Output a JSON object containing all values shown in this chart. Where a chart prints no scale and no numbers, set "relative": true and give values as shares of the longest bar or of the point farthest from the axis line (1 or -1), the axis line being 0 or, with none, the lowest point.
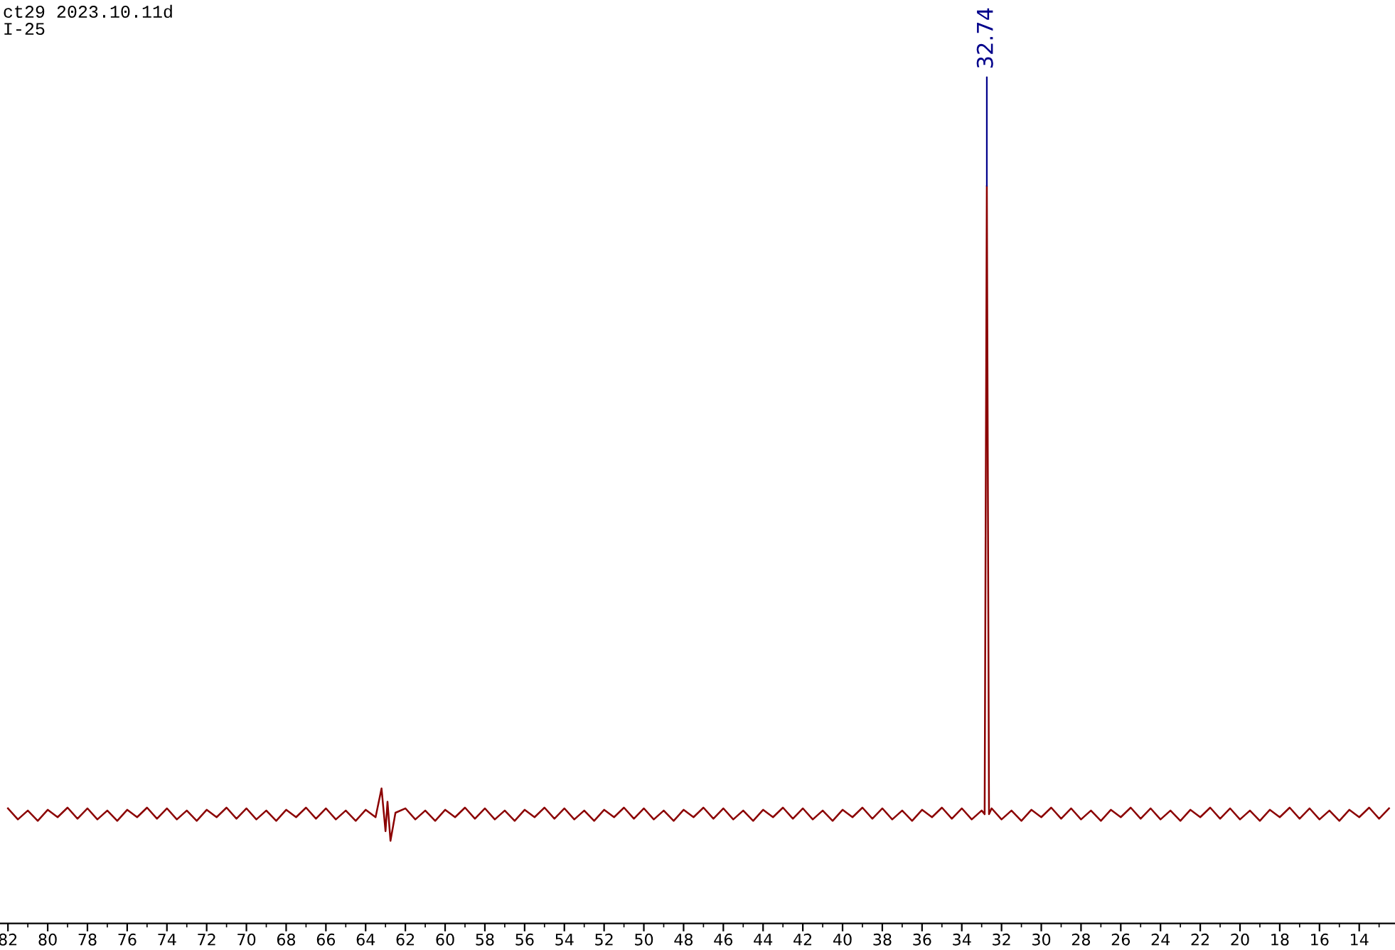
{
  "chart_data": {
    "type": "line",
    "relative": true,
    "annotations": [
      "ct29 2023.10.11d",
      "I-25",
      {
        "text": "32.74",
        "x": 32.74,
        "y": 1.0
      }
    ],
    "xlim": [
      82.4,
      12.2
    ],
    "xticks": [
      82,
      {
        "value": 81,
        "label": null
      },
      80,
      {
        "value": 79,
        "label": null
      },
      78,
      {
        "value": 77,
        "label": null
      },
      76,
      {
        "value": 75,
        "label": null
      },
      74,
      {
        "value": 73,
        "label": null
      },
      72,
      {
        "value": 71,
        "label": null
      },
      70,
      {
        "value": 69,
        "label": null
      },
      68,
      {
        "value": 67,
        "label": null
      },
      66,
      {
        "value": 65,
        "label": null
      },
      64,
      {
        "value": 63,
        "label": null
      },
      62,
      {
        "value": 61,
        "label": null
      },
      60,
      {
        "value": 59,
        "label": null
      },
      58,
      {
        "value": 57,
        "label": null
      },
      56,
      {
        "value": 55,
        "label": null
      },
      54,
      {
        "value": 53,
        "label": null
      },
      52,
      {
        "value": 51,
        "label": null
      },
      50,
      {
        "value": 49,
        "label": null
      },
      48,
      {
        "value": 47,
        "label": null
      },
      46,
      {
        "value": 45,
        "label": null
      },
      44,
      {
        "value": 43,
        "label": null
      },
      42,
      {
        "value": 41,
        "label": null
      },
      40,
      {
        "value": 39,
        "label": null
      },
      38,
      {
        "value": 37,
        "label": null
      },
      36,
      {
        "value": 35,
        "label": null
      },
      34,
      {
        "value": 33,
        "label": null
      },
      32,
      {
        "value": 31,
        "label": null
      },
      30,
      {
        "value": 29,
        "label": null
      },
      28,
      {
        "value": 27,
        "label": null
      },
      26,
      {
        "value": 25,
        "label": null
      },
      24,
      {
        "value": 23,
        "label": null
      },
      22,
      {
        "value": 21,
        "label": null
      },
      20,
      {
        "value": 19,
        "label": null
      },
      18,
      {
        "value": 17,
        "label": null
      },
      16,
      {
        "value": 15,
        "label": null
      },
      14,
      {
        "value": 13,
        "label": null
      }
    ],
    "grid": false,
    "legend": false,
    "series": [
      {
        "color": "#8b0000",
        "x": [
          82,
          81.5,
          81,
          80.5,
          80,
          79.5,
          79,
          78.5,
          78,
          77.5,
          77,
          76.5,
          76,
          75.5,
          75,
          74.5,
          74,
          73.5,
          73,
          72.5,
          72,
          71.5,
          71,
          70.5,
          70,
          69.5,
          69,
          68.5,
          68,
          67.5,
          67,
          66.5,
          66,
          65.5,
          65,
          64.5,
          64,
          63.5,
          63.2,
          63.0,
          62.9,
          62.75,
          62.5,
          62,
          61.5,
          61,
          60.5,
          60,
          59.5,
          59,
          58.5,
          58,
          57.5,
          57,
          56.5,
          56,
          55.5,
          55,
          54.5,
          54,
          53.5,
          53,
          52.5,
          52,
          51.5,
          51,
          50.5,
          50,
          49.5,
          49,
          48.5,
          48,
          47.5,
          47,
          46.5,
          46,
          45.5,
          45,
          44.5,
          44,
          43.5,
          43,
          42.5,
          42,
          41.5,
          41,
          40.5,
          40,
          39.5,
          39,
          38.5,
          38,
          37.5,
          37,
          36.5,
          36,
          35.5,
          35,
          34.5,
          34,
          33.5,
          33,
          32.85,
          32.74,
          32.63,
          32.5,
          32,
          31.5,
          31,
          30.5,
          30,
          29.5,
          29,
          28.5,
          28,
          27.5,
          27,
          26.5,
          26,
          25.5,
          25,
          24.5,
          24,
          23.5,
          23,
          22.5,
          22,
          21.5,
          21,
          20.5,
          20,
          19.5,
          19,
          18.5,
          18,
          17.5,
          17,
          16.5,
          16,
          15.5,
          15,
          14.5,
          14,
          13.5,
          13,
          12.5
        ],
        "values": [
          0.156,
          0.141,
          0.153,
          0.139,
          0.154,
          0.144,
          0.157,
          0.142,
          0.156,
          0.141,
          0.153,
          0.139,
          0.154,
          0.144,
          0.157,
          0.142,
          0.156,
          0.141,
          0.153,
          0.139,
          0.154,
          0.144,
          0.157,
          0.142,
          0.156,
          0.141,
          0.153,
          0.139,
          0.154,
          0.144,
          0.157,
          0.142,
          0.156,
          0.141,
          0.153,
          0.139,
          0.154,
          0.144,
          0.183,
          0.125,
          0.165,
          0.112,
          0.15,
          0.156,
          0.141,
          0.153,
          0.139,
          0.154,
          0.144,
          0.157,
          0.142,
          0.156,
          0.141,
          0.153,
          0.139,
          0.154,
          0.144,
          0.157,
          0.142,
          0.156,
          0.141,
          0.153,
          0.139,
          0.154,
          0.144,
          0.157,
          0.142,
          0.156,
          0.141,
          0.153,
          0.139,
          0.154,
          0.144,
          0.157,
          0.142,
          0.156,
          0.141,
          0.153,
          0.139,
          0.154,
          0.144,
          0.157,
          0.142,
          0.156,
          0.141,
          0.153,
          0.139,
          0.154,
          0.144,
          0.157,
          0.142,
          0.156,
          0.141,
          0.153,
          0.139,
          0.154,
          0.144,
          0.157,
          0.142,
          0.156,
          0.141,
          0.153,
          0.148,
          1.0,
          0.148,
          0.156,
          0.141,
          0.153,
          0.139,
          0.154,
          0.144,
          0.157,
          0.142,
          0.156,
          0.141,
          0.153,
          0.139,
          0.154,
          0.144,
          0.157,
          0.142,
          0.156,
          0.141,
          0.153,
          0.139,
          0.154,
          0.144,
          0.157,
          0.142,
          0.156,
          0.141,
          0.153,
          0.139,
          0.154,
          0.144,
          0.157,
          0.142,
          0.156,
          0.141,
          0.153,
          0.139,
          0.154,
          0.144,
          0.157,
          0.142,
          0.156
        ]
      }
    ]
  }
}
